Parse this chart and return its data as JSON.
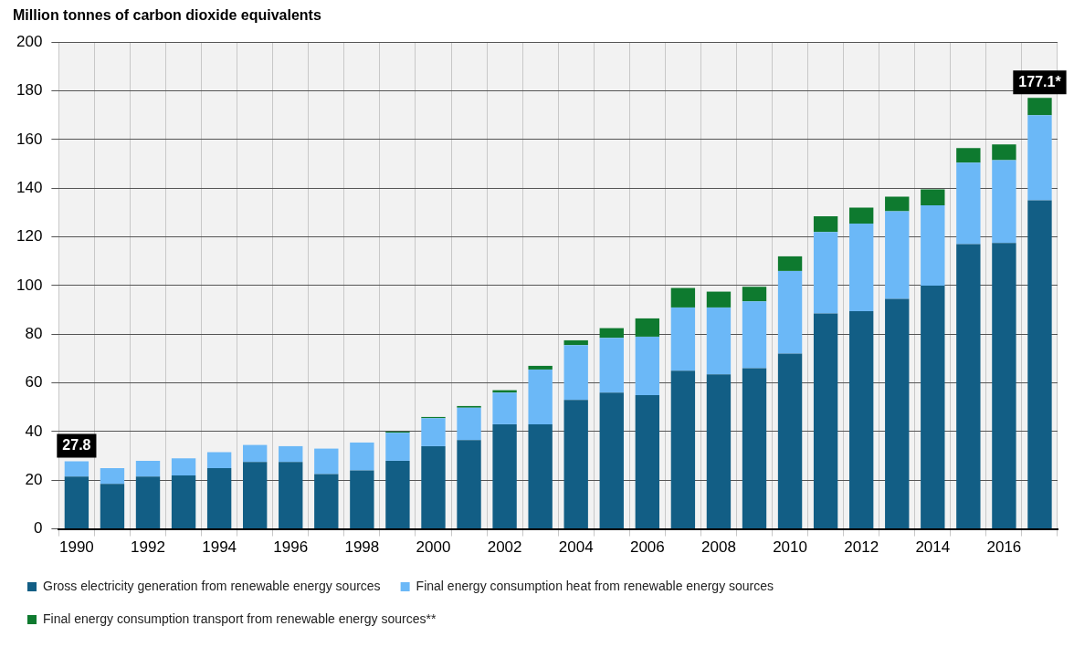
{
  "chart_data": {
    "type": "bar",
    "stacked": true,
    "ylabel": "Million tonnes of carbon dioxide equivalents",
    "categories": [
      "1990",
      null,
      "1992",
      null,
      "1994",
      null,
      "1996",
      null,
      "1998",
      null,
      "2000",
      null,
      "2002",
      null,
      "2004",
      null,
      "2006",
      null,
      "2008",
      null,
      "2010",
      null,
      "2012",
      null,
      "2014",
      null,
      "2016",
      null
    ],
    "series": [
      {
        "name": "Gross electricity generation from renewable energy sources",
        "color": "#125e85",
        "values": [
          21.5,
          18.5,
          21.5,
          22,
          25,
          27.5,
          27.5,
          22.5,
          24,
          28,
          34,
          36.5,
          43,
          43,
          53,
          56,
          55,
          65,
          63.5,
          66,
          72,
          88.5,
          89.5,
          94.5,
          100,
          117,
          117.5,
          135
        ]
      },
      {
        "name": "Final energy consumption heat from renewable energy sources",
        "color": "#6bb8f7",
        "values": [
          6.3,
          6.5,
          6.5,
          7,
          6.5,
          7,
          6.5,
          10.5,
          11.5,
          11.5,
          11.5,
          13.3,
          13,
          22.5,
          22.5,
          22.5,
          24,
          26,
          27.5,
          27.5,
          34,
          33.5,
          36,
          36,
          33,
          33.5,
          34,
          35
        ]
      },
      {
        "name": "Final energy consumption transport from renewable energy sources**",
        "color": "#0e7a2f",
        "values": [
          0,
          0,
          0,
          0,
          0,
          0,
          0,
          0,
          0,
          0.5,
          0.5,
          0.7,
          1,
          1.5,
          2,
          4,
          7.5,
          8,
          6.5,
          6,
          6,
          6.5,
          6.5,
          6,
          6.5,
          6,
          6.5,
          7.1
        ]
      }
    ],
    "totals": [
      "27.8",
      null,
      null,
      null,
      null,
      null,
      null,
      null,
      null,
      null,
      null,
      null,
      null,
      null,
      null,
      null,
      null,
      null,
      null,
      null,
      null,
      null,
      null,
      null,
      null,
      null,
      null,
      "177.1*"
    ],
    "ylim": [
      0,
      200
    ],
    "yticks": [
      0,
      20,
      40,
      60,
      80,
      100,
      120,
      140,
      160,
      180,
      200
    ],
    "grid": true,
    "legend": "bottom"
  }
}
